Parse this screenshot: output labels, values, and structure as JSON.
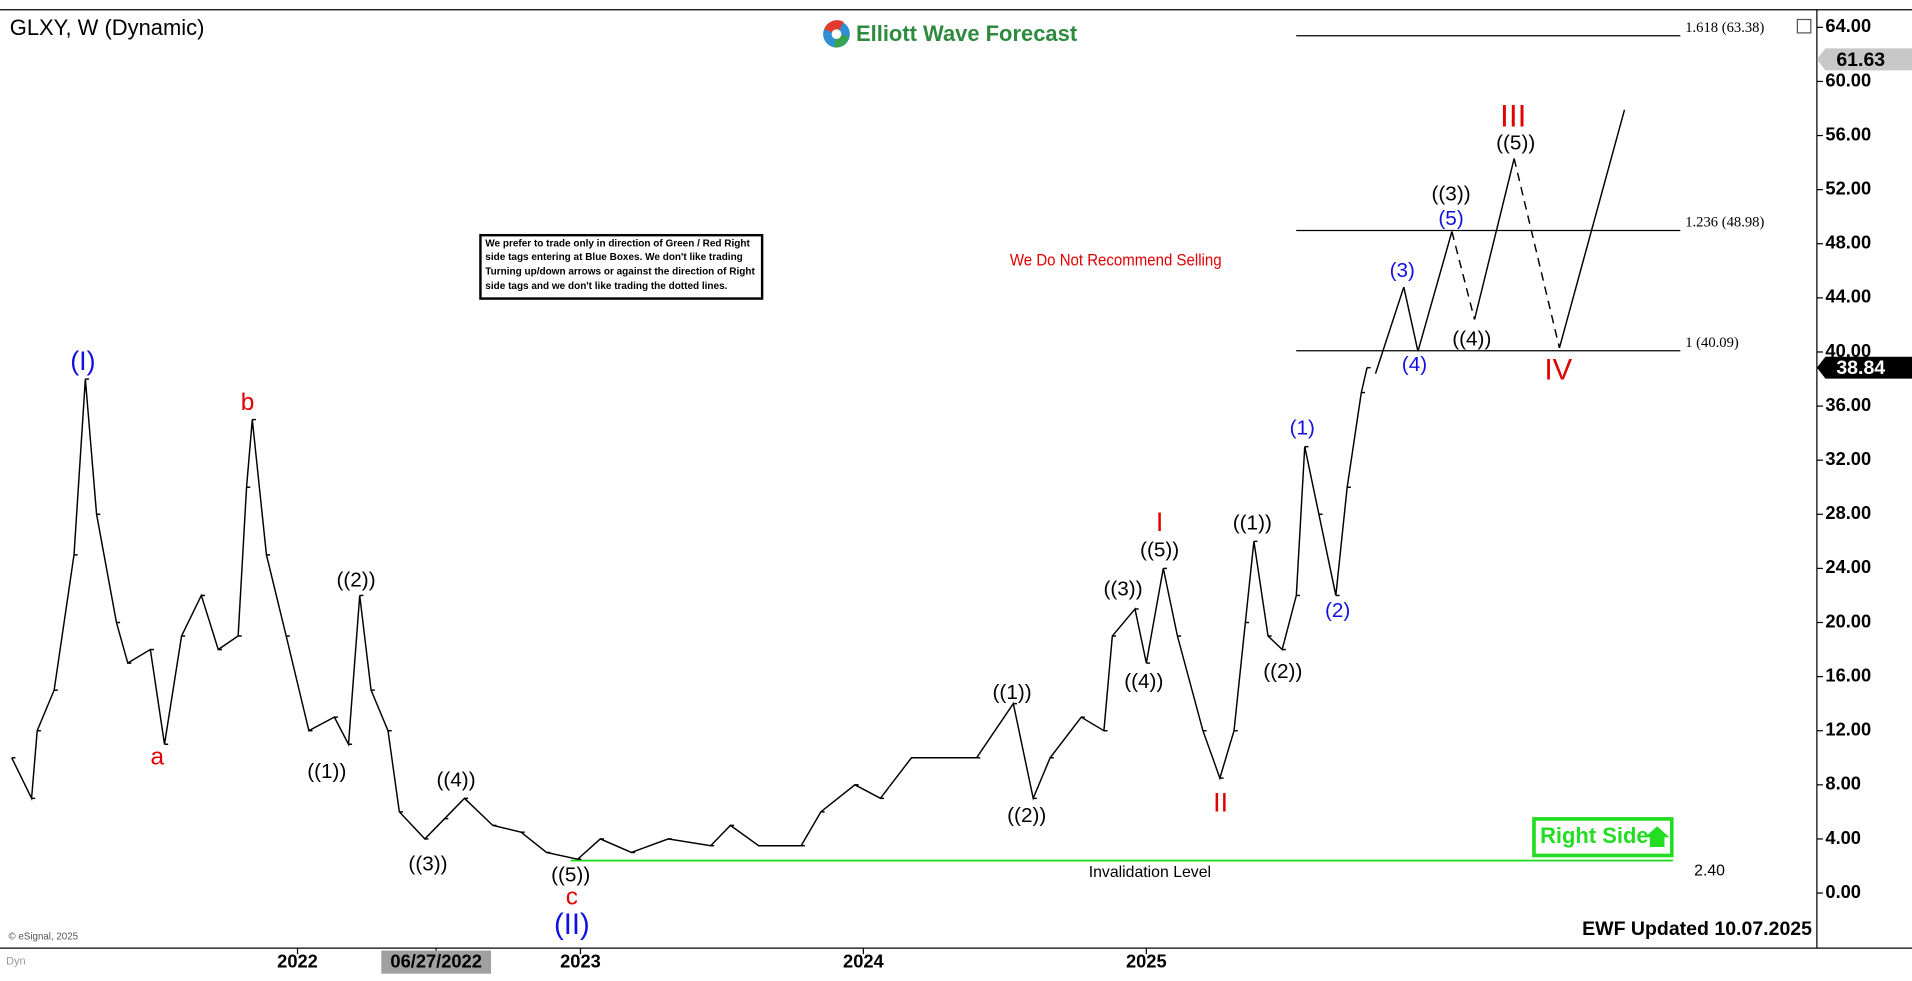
{
  "header": {
    "title": "GLXY, W (Dynamic)",
    "logo": "Elliott Wave Forecast",
    "copyright": "© eSignal, 2025",
    "corner": "Dyn",
    "updated": "EWF Updated 10.07.2025"
  },
  "note": [
    "We prefer to trade only in direction of Green / Red Right",
    "side tags entering at Blue Boxes. We don't like trading",
    "Turning up/down arrows or against the direction of Right",
    "side tags and we don't like trading the dotted lines."
  ],
  "warning": "We Do Not Recommend Selling",
  "right_side": "Right Side",
  "chart_data": {
    "type": "line",
    "color": "#000000",
    "x": [
      2020.99,
      2021.06,
      2021.08,
      2021.14,
      2021.21,
      2021.25,
      2021.29,
      2021.36,
      2021.4,
      2021.48,
      2021.53,
      2021.59,
      2021.66,
      2021.72,
      2021.79,
      2021.82,
      2021.84,
      2021.89,
      2021.96,
      2022.04,
      2022.13,
      2022.18,
      2022.22,
      2022.26,
      2022.32,
      2022.36,
      2022.45,
      2022.52,
      2022.59,
      2022.69,
      2022.79,
      2022.88,
      2022.99,
      2023.07,
      2023.18,
      2023.31,
      2023.46,
      2023.53,
      2023.63,
      2023.78,
      2023.85,
      2023.97,
      2024.06,
      2024.17,
      2024.27,
      2024.4,
      2024.53,
      2024.6,
      2024.66,
      2024.77,
      2024.85,
      2024.88,
      2024.96,
      2025.0,
      2025.06,
      2025.11,
      2025.2,
      2025.26,
      2025.31,
      2025.35,
      2025.38,
      2025.43,
      2025.48,
      2025.53,
      2025.56,
      2025.61,
      2025.67,
      2025.71,
      2025.76,
      2025.78
    ],
    "values": [
      10,
      7,
      12,
      15,
      25,
      38,
      28,
      20,
      17,
      18,
      11,
      19,
      22,
      18,
      19,
      30,
      35,
      25,
      19,
      12,
      13,
      11,
      22,
      15,
      12,
      6,
      4,
      5.5,
      7,
      5,
      4.5,
      3,
      2.5,
      4,
      3,
      4,
      3.5,
      5,
      3.5,
      3.5,
      6,
      8,
      7,
      10,
      10,
      10,
      14,
      7,
      10,
      13,
      12,
      19,
      21,
      17,
      24,
      19,
      12,
      8.5,
      12,
      20,
      26,
      19,
      18,
      22,
      33,
      28,
      22,
      30,
      37,
      38.84
    ],
    "xlim": [
      2020.97,
      2027.37
    ],
    "ylim": [
      -3.8,
      65.3
    ],
    "xticks": [
      2022,
      {
        "value": 2022.49,
        "label": "06/27/2022"
      },
      2023,
      2024,
      2025
    ],
    "yticks": [
      {
        "value": 0,
        "label": "0.00"
      },
      {
        "value": 4,
        "label": "4.00"
      },
      {
        "value": 8,
        "label": "8.00"
      },
      {
        "value": 12,
        "label": "12.00"
      },
      {
        "value": 16,
        "label": "16.00"
      },
      {
        "value": 20,
        "label": "20.00"
      },
      {
        "value": 24,
        "label": "24.00"
      },
      {
        "value": 28,
        "label": "28.00"
      },
      {
        "value": 32,
        "label": "32.00"
      },
      {
        "value": 36,
        "label": "36.00"
      },
      {
        "value": 40,
        "label": "40.00"
      },
      {
        "value": 44,
        "label": "44.00"
      },
      {
        "value": 48,
        "label": "48.00"
      },
      {
        "value": 52,
        "label": "52.00"
      },
      {
        "value": 56,
        "label": "56.00"
      },
      {
        "value": 60,
        "label": "60.00"
      },
      {
        "value": 64,
        "label": "64.00"
      }
    ],
    "projection": {
      "x": [
        2025.81,
        2025.91,
        2025.96,
        2026.08,
        2026.16,
        2026.3,
        2026.46,
        2026.69
      ],
      "values": [
        38.4,
        44.8,
        40.05,
        48.9,
        42.4,
        54.3,
        40.3,
        57.9
      ],
      "segment_styles": [
        "solid",
        "solid",
        "solid",
        "dashed",
        "solid",
        "dashed",
        "solid"
      ]
    },
    "levels": [
      {
        "value": 63.38,
        "label": "1.618 (63.38)"
      },
      {
        "value": 48.98,
        "label": "1.236 (48.98)"
      },
      {
        "value": 40.09,
        "label": "1 (40.09)"
      }
    ],
    "invalidation": {
      "value": 2.4,
      "label": "2.40",
      "name": "Invalidation Level",
      "color": "#22dd22"
    },
    "price_tags": [
      {
        "value": 61.63,
        "label": "61.63"
      },
      {
        "value": 38.84,
        "label": "38.84"
      }
    ],
    "wave_labels": [
      {
        "text": "(I)",
        "color": "#1010e0"
      },
      {
        "text": "a",
        "color": "#e00000"
      },
      {
        "text": "b",
        "color": "#e00000"
      },
      {
        "text": "((1))",
        "color": "#000000"
      },
      {
        "text": "((2))",
        "color": "#000000"
      },
      {
        "text": "((3))",
        "color": "#000000"
      },
      {
        "text": "((4))",
        "color": "#000000"
      },
      {
        "text": "((5))",
        "color": "#000000"
      },
      {
        "text": "c",
        "color": "#e00000"
      },
      {
        "text": "(II)",
        "color": "#1010e0"
      },
      {
        "text": "((1))",
        "color": "#000000"
      },
      {
        "text": "((2))",
        "color": "#000000"
      },
      {
        "text": "((3))",
        "color": "#000000"
      },
      {
        "text": "((4))",
        "color": "#000000"
      },
      {
        "text": "((5))",
        "color": "#000000"
      },
      {
        "text": "I",
        "color": "#e00000"
      },
      {
        "text": "II",
        "color": "#e00000"
      },
      {
        "text": "((1))",
        "color": "#000000"
      },
      {
        "text": "((2))",
        "color": "#000000"
      },
      {
        "text": "(1)",
        "color": "#1010e0"
      },
      {
        "text": "(2)",
        "color": "#1010e0"
      },
      {
        "text": "(3)",
        "color": "#1010e0"
      },
      {
        "text": "(4)",
        "color": "#1010e0"
      },
      {
        "text": "(5)",
        "color": "#1010e0"
      },
      {
        "text": "((3))",
        "color": "#000000"
      },
      {
        "text": "((4))",
        "color": "#000000"
      },
      {
        "text": "((5))",
        "color": "#000000"
      },
      {
        "text": "III",
        "color": "#e00000"
      },
      {
        "text": "IV",
        "color": "#e00000"
      }
    ]
  }
}
